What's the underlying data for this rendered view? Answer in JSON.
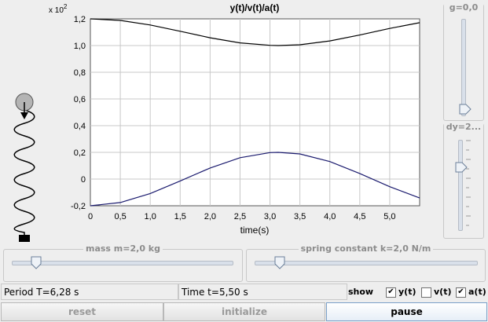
{
  "chart_data": {
    "type": "line",
    "title": "y(t)/v(t)/a(t)",
    "xlabel": "time(s)",
    "ylabel": "",
    "y_multiplier": "x 10",
    "y_multiplier_exp": "2",
    "xlim": [
      0,
      5.5
    ],
    "ylim": [
      -0.2,
      1.2
    ],
    "x_ticks": [
      "0",
      "0,5",
      "1,0",
      "1,5",
      "2,0",
      "2,5",
      "3,0",
      "3,5",
      "4,0",
      "4,5",
      "5,0"
    ],
    "x_tick_values": [
      0,
      0.5,
      1.0,
      1.5,
      2.0,
      2.5,
      3.0,
      3.5,
      4.0,
      4.5,
      5.0
    ],
    "y_ticks": [
      "1,2",
      "1,0",
      "0,8",
      "0,6",
      "0,4",
      "0,2",
      "0",
      "-0,2"
    ],
    "y_tick_values": [
      1.2,
      1.0,
      0.8,
      0.6,
      0.4,
      0.2,
      0,
      -0.2
    ],
    "grid": true,
    "series": [
      {
        "color": "#000000",
        "x": [
          0,
          0.5,
          1.0,
          1.5,
          2.0,
          2.5,
          3.0,
          3.14,
          3.5,
          4.0,
          4.5,
          5.0,
          5.5
        ],
        "y": [
          1.2,
          1.188,
          1.154,
          1.107,
          1.058,
          1.02,
          1.002,
          1.0,
          1.006,
          1.035,
          1.079,
          1.128,
          1.171
        ]
      },
      {
        "color": "#1a1a6e",
        "x": [
          0,
          0.5,
          1.0,
          1.5,
          2.0,
          2.5,
          3.0,
          3.14,
          3.5,
          4.0,
          4.5,
          5.0,
          5.5
        ],
        "y": [
          -0.2,
          -0.176,
          -0.108,
          -0.014,
          0.083,
          0.16,
          0.198,
          0.2,
          0.188,
          0.131,
          0.042,
          -0.057,
          -0.142
        ]
      }
    ]
  },
  "sliders": {
    "g": {
      "label": "g=0,0",
      "level": 0.0
    },
    "dy": {
      "label": "dy=2...",
      "level": 0.55
    },
    "mass": {
      "label": "mass m=2,0 kg",
      "level": 0.15
    },
    "spring": {
      "label": "spring constant k=2,0 N/m",
      "level": 0.12
    }
  },
  "status": {
    "period": "Period T=6,28 s",
    "time": "Time t=5,50 s"
  },
  "show": {
    "label": "show",
    "options": [
      {
        "label": "y(t)",
        "checked": true,
        "mark": "✔"
      },
      {
        "label": "v(t)",
        "checked": false,
        "mark": ""
      },
      {
        "label": "a(t)",
        "checked": true,
        "mark": "✔"
      }
    ]
  },
  "buttons": {
    "reset": "reset",
    "initialize": "initialize",
    "pause": "pause"
  }
}
